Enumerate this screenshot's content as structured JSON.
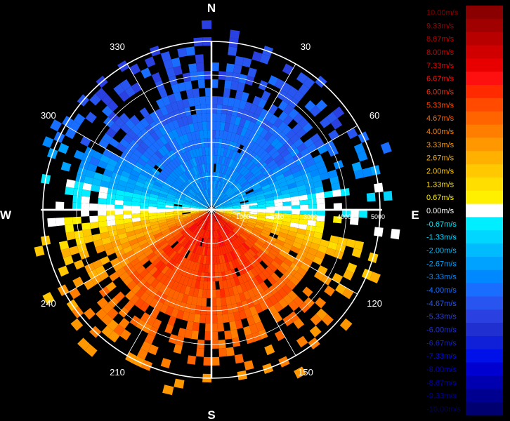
{
  "chart_data": {
    "type": "heatmap",
    "subtype": "polar-ppi",
    "compass": {
      "N": "N",
      "E": "E",
      "S": "S",
      "W": "W"
    },
    "azimuth_ticks": [
      "30",
      "60",
      "120",
      "150",
      "210",
      "240",
      "300",
      "330"
    ],
    "azimuth_tick_values": [
      30,
      60,
      120,
      150,
      210,
      240,
      300,
      330
    ],
    "range_ticks": [
      "1000",
      "2000",
      "3000",
      "4000",
      "5000"
    ],
    "range_tick_values": [
      1000,
      2000,
      3000,
      4000,
      5000
    ],
    "range_max": 5000,
    "grid": true,
    "scale": {
      "labels": [
        "10.00m/s",
        "9.33m/s",
        "8.67m/s",
        "8.00m/s",
        "7.33m/s",
        "6.67m/s",
        "6.00m/s",
        "5.33m/s",
        "4.67m/s",
        "4.00m/s",
        "3.33m/s",
        "2.67m/s",
        "2.00m/s",
        "1.33m/s",
        "0.67m/s",
        "0.00m/s",
        "-0.67m/s",
        "-1.33m/s",
        "-2.00m/s",
        "-2.67m/s",
        "-3.33m/s",
        "-4.00m/s",
        "-4.67m/s",
        "-5.33m/s",
        "-6.00m/s",
        "-6.67m/s",
        "-7.33m/s",
        "-8.00m/s",
        "-8.67m/s",
        "-9.33m/s",
        "-10.00m/s"
      ],
      "colors": [
        "#8a0000",
        "#a00000",
        "#b80000",
        "#d00000",
        "#e80000",
        "#ff1010",
        "#ff2a00",
        "#ff4a00",
        "#ff6400",
        "#ff7e00",
        "#ff9800",
        "#ffb000",
        "#ffc800",
        "#ffde00",
        "#fff000",
        "#ffffff",
        "#00eeff",
        "#00d6ff",
        "#00bcff",
        "#00a2ff",
        "#0088ff",
        "#1a6eff",
        "#2855f0",
        "#2a40e0",
        "#2030d0",
        "#1020d8",
        "#0010e8",
        "#0000d0",
        "#0000b0",
        "#000090",
        "#000070"
      ]
    },
    "velocity_pattern": {
      "description": "north half receding (negative velocities, blue); south half approaching (positive velocities, orange/red)",
      "north_peak": -5.33,
      "south_peak": 6.67
    }
  }
}
